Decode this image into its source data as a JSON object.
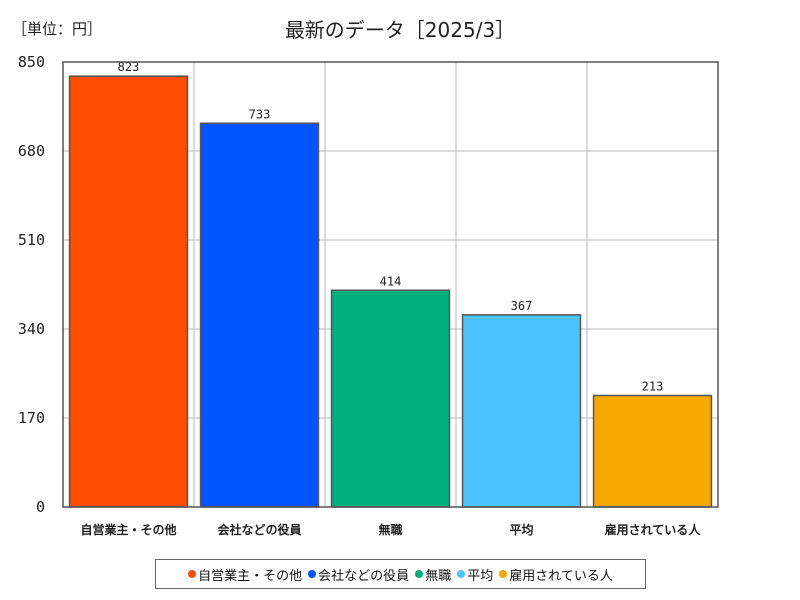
{
  "unit_label": "［単位：円］",
  "chart_data": {
    "type": "bar",
    "title": "最新のデータ［2025/3］",
    "categories": [
      "自営業主・その他",
      "会社などの役員",
      "無職",
      "平均",
      "雇用されている人"
    ],
    "values": [
      823,
      733,
      414,
      367,
      213
    ],
    "colors": [
      "#ff4d00",
      "#0055ff",
      "#00b07a",
      "#4dc3ff",
      "#f5a800"
    ],
    "ylim": [
      0,
      850
    ],
    "yticks": [
      0,
      170,
      340,
      510,
      680,
      850
    ],
    "xlabel": "",
    "ylabel": "",
    "grid": true,
    "legend": "bottom"
  }
}
